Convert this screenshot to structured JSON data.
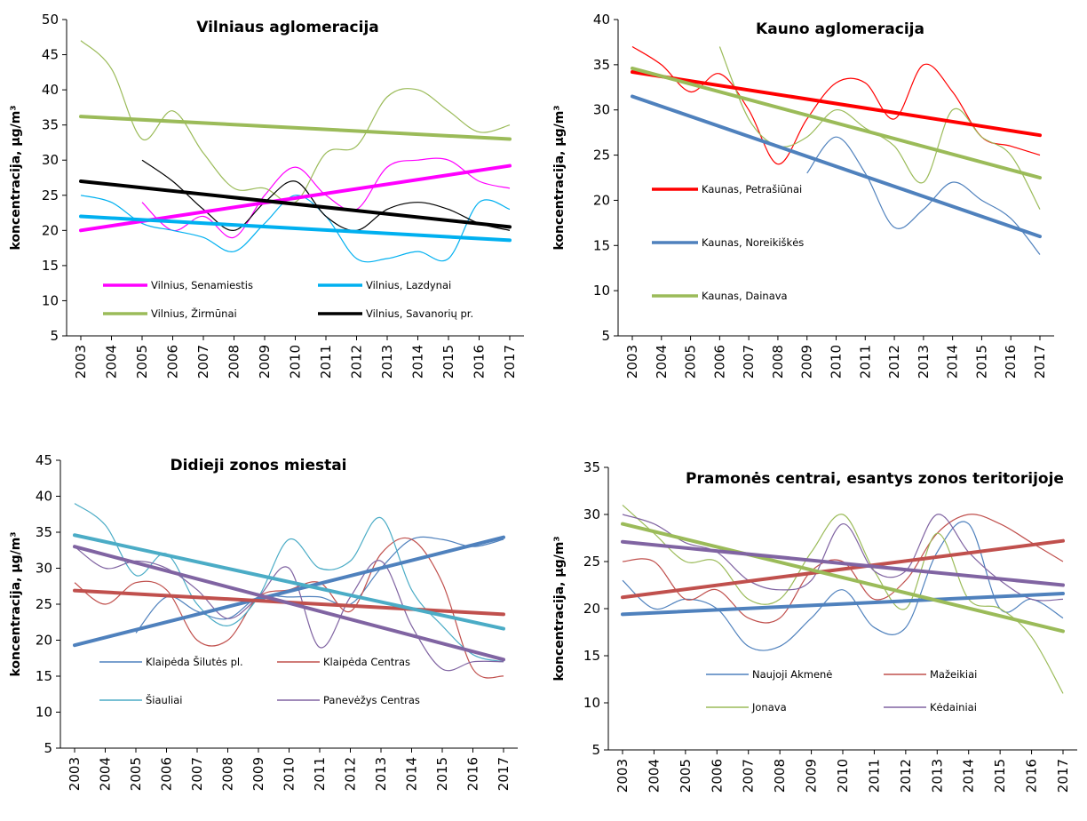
{
  "chart_data": [
    {
      "type": "line",
      "title": "Vilniaus aglomeracija",
      "ylabel": "koncentracija, µg/m³",
      "ylim": [
        5,
        50
      ],
      "yticks": [
        5,
        10,
        15,
        20,
        25,
        30,
        35,
        40,
        45,
        50
      ],
      "x": [
        "2003",
        "2004",
        "2005",
        "2006",
        "2007",
        "2008",
        "2009",
        "2010",
        "2011",
        "2012",
        "2013",
        "2014",
        "2015",
        "2016",
        "2017"
      ],
      "series": [
        {
          "name": "Vilnius, Senamiestis",
          "color": "#ff00ff",
          "values": [
            null,
            null,
            24,
            20,
            22,
            19,
            25,
            29,
            25,
            23,
            29,
            30,
            30,
            27,
            26
          ],
          "trend": [
            20,
            29.2
          ]
        },
        {
          "name": "Vilnius, Lazdynai",
          "color": "#00b0f0",
          "values": [
            25,
            24,
            21,
            20,
            19,
            17,
            21,
            25,
            22,
            16,
            16,
            17,
            16,
            24,
            23
          ],
          "trend": [
            22,
            18.6
          ]
        },
        {
          "name": "Vilnius, Žirmūnai",
          "color": "#9bbb59",
          "values": [
            47,
            43,
            33,
            37,
            31,
            26,
            26,
            24,
            31,
            32,
            39,
            40,
            37,
            34,
            35
          ],
          "trend": [
            36.2,
            33
          ]
        },
        {
          "name": "Vilnius, Savanorių pr.",
          "color": "#000000",
          "values": [
            null,
            null,
            30,
            27,
            23,
            20,
            24,
            27,
            22,
            20,
            23,
            24,
            23,
            21,
            20
          ],
          "trend": [
            27,
            20.5
          ]
        }
      ],
      "legend": "bottom-inside"
    },
    {
      "type": "line",
      "title": "Kauno aglomeracija",
      "ylabel": "koncentracija, µg/m³",
      "ylim": [
        5,
        40
      ],
      "yticks": [
        5,
        10,
        15,
        20,
        25,
        30,
        35,
        40
      ],
      "x": [
        "2003",
        "2004",
        "2005",
        "2006",
        "2007",
        "2008",
        "2009",
        "2010",
        "2011",
        "2012",
        "2013",
        "2014",
        "2015",
        "2016",
        "2017"
      ],
      "series": [
        {
          "name": "Kaunas, Petrašiūnai",
          "color": "#ff0000",
          "values": [
            37,
            35,
            32,
            34,
            30,
            24,
            29,
            33,
            33,
            29,
            35,
            32,
            27,
            26,
            25
          ],
          "trend": [
            34.2,
            27.2
          ]
        },
        {
          "name": "Kaunas, Noreikiškės",
          "color": "#4f81bd",
          "values": [
            null,
            null,
            null,
            null,
            null,
            null,
            23,
            27,
            23,
            17,
            19,
            22,
            20,
            18,
            14
          ],
          "trend": [
            31.5,
            16
          ]
        },
        {
          "name": "Kaunas, Dainava",
          "color": "#9bbb59",
          "values": [
            null,
            null,
            null,
            37,
            29,
            26,
            27,
            30,
            28,
            26,
            22,
            30,
            27,
            25,
            19
          ],
          "trend": [
            34.6,
            22.5
          ]
        }
      ],
      "legend": "left-inside"
    },
    {
      "type": "line",
      "title": "Didieji zonos miestai",
      "ylabel": "koncentracija, µg/m³",
      "ylim": [
        5,
        45
      ],
      "yticks": [
        5,
        10,
        15,
        20,
        25,
        30,
        35,
        40,
        45
      ],
      "x": [
        "2003",
        "2004",
        "2005",
        "2006",
        "2007",
        "2008",
        "2009",
        "2010",
        "2011",
        "2012",
        "2013",
        "2014",
        "2015",
        "2016",
        "2017"
      ],
      "series": [
        {
          "name": "Klaipėda Šilutės pl.",
          "color": "#4f81bd",
          "values": [
            null,
            null,
            21,
            26,
            24,
            23,
            26,
            26,
            26,
            25,
            30,
            34,
            34,
            33,
            34
          ],
          "trend": [
            19.3,
            34.3
          ]
        },
        {
          "name": "Klaipėda Centras",
          "color": "#c0504d",
          "values": [
            28,
            25,
            28,
            27,
            20,
            20,
            26,
            27,
            28,
            24,
            32,
            34,
            28,
            16,
            15
          ],
          "trend": [
            26.9,
            23.6
          ]
        },
        {
          "name": "Šiauliai",
          "color": "#4bacc6",
          "values": [
            39,
            36,
            29,
            32,
            25,
            22,
            26,
            34,
            30,
            31,
            37,
            27,
            22,
            18,
            17
          ],
          "trend": [
            34.6,
            21.6
          ]
        },
        {
          "name": "Panevėžys Centras",
          "color": "#8064a2",
          "values": [
            33,
            30,
            31,
            30,
            27,
            23,
            26,
            30,
            19,
            26,
            31,
            22,
            16,
            17,
            17
          ],
          "trend": [
            33,
            17.3
          ]
        }
      ],
      "legend": "bottom-inside"
    },
    {
      "type": "line",
      "title": "Pramonės centrai, esantys zonos teritorijoje",
      "ylabel": "koncentracija, µg/m³",
      "ylim": [
        5,
        35
      ],
      "yticks": [
        5,
        10,
        15,
        20,
        25,
        30,
        35
      ],
      "x": [
        "2003",
        "2004",
        "2005",
        "2006",
        "2007",
        "2008",
        "2009",
        "2010",
        "2011",
        "2012",
        "2013",
        "2014",
        "2015",
        "2016",
        "2017"
      ],
      "series": [
        {
          "name": "Naujoji Akmenė",
          "color": "#4f81bd",
          "values": [
            23,
            20,
            21,
            20,
            16,
            16,
            19,
            22,
            18,
            18,
            26,
            29,
            20,
            21,
            19
          ],
          "trend": [
            19.4,
            21.6
          ]
        },
        {
          "name": "Mažeikiai",
          "color": "#c0504d",
          "values": [
            25,
            25,
            21,
            22,
            19,
            19,
            24,
            25,
            21,
            23,
            28,
            30,
            29,
            27,
            25
          ],
          "trend": [
            21.2,
            27.2
          ]
        },
        {
          "name": "Jonava",
          "color": "#9bbb59",
          "values": [
            31,
            28,
            25,
            25,
            21,
            21,
            26,
            30,
            24,
            20,
            28,
            21,
            20,
            17,
            11
          ],
          "trend": [
            29,
            17.6
          ]
        },
        {
          "name": "Kėdainiai",
          "color": "#8064a2",
          "values": [
            30,
            29,
            27,
            26,
            23,
            22,
            23,
            29,
            24,
            24,
            30,
            26,
            23,
            21,
            21
          ],
          "trend": [
            27.1,
            22.5
          ]
        }
      ],
      "legend": "bottom-inside"
    }
  ]
}
